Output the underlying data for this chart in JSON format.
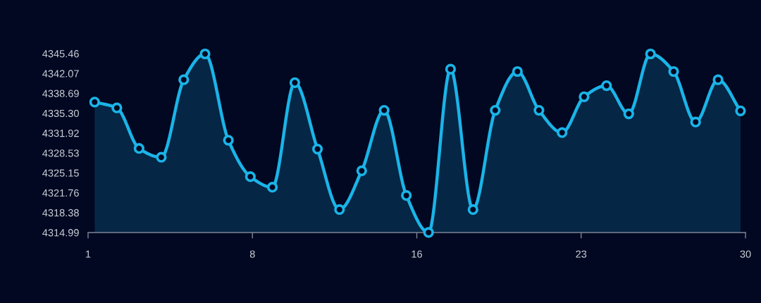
{
  "chart_data": {
    "type": "area",
    "x": [
      1.29,
      2.27,
      3.25,
      4.23,
      5.22,
      6.16,
      7.19,
      8.16,
      9.13,
      10.12,
      11.12,
      12.09,
      13.07,
      14.06,
      15.04,
      16.02,
      16.99,
      17.98,
      18.96,
      19.94,
      20.89,
      21.91,
      22.88,
      23.87,
      24.85,
      25.81,
      26.83,
      27.8,
      28.79,
      29.78
    ],
    "series": [
      {
        "color": "#1ab4e8",
        "values": [
          4337.2,
          4336.2,
          4329.3,
          4327.8,
          4341.0,
          4345.4,
          4330.7,
          4324.5,
          4322.7,
          4340.5,
          4329.2,
          4318.9,
          4325.5,
          4335.8,
          4321.3,
          4315.0,
          4342.8,
          4318.9,
          4335.8,
          4342.4,
          4335.8,
          4332.0,
          4338.1,
          4340.0,
          4335.2,
          4345.4,
          4342.4,
          4333.8,
          4341.0,
          4335.7
        ]
      }
    ],
    "xlim": [
      1,
      30
    ],
    "xticks": [
      1,
      {
        "value": 8.25,
        "label": "8"
      },
      {
        "value": 15.5,
        "label": "16"
      },
      {
        "value": 22.75,
        "label": "23"
      },
      30
    ],
    "ylim": [
      4314.99,
      4345.46
    ],
    "yticks": [
      4314.99,
      4318.38,
      4321.76,
      4325.15,
      4328.53,
      4331.92,
      {
        "value": 4335.3,
        "label": "4335.30"
      },
      4338.69,
      4342.07,
      4345.46
    ],
    "marker": "circle",
    "line_style": "solid"
  }
}
